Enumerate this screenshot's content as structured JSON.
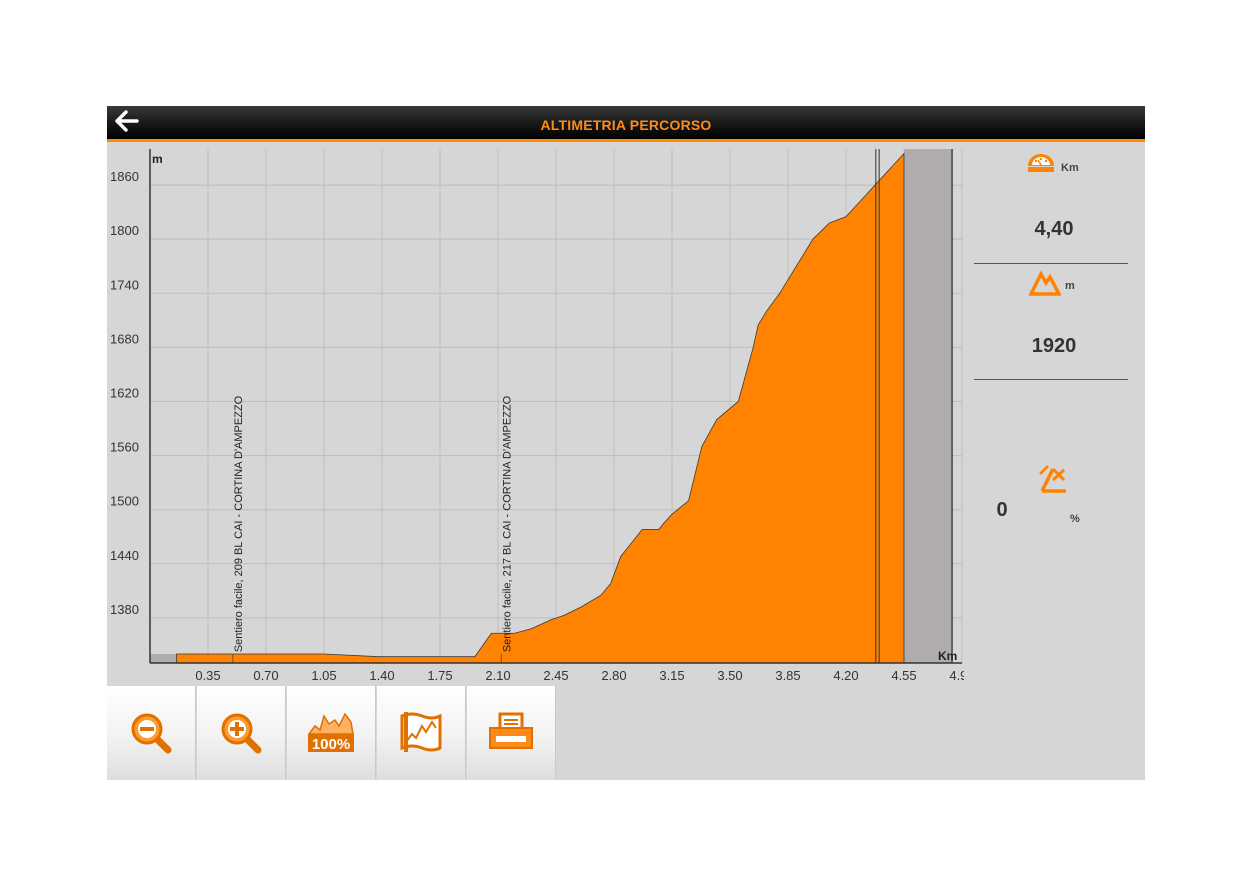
{
  "header": {
    "title": "ALTIMETRIA PERCORSO",
    "back_icon": "arrow-left-icon"
  },
  "side_panel": {
    "distance": {
      "icon": "odometer-icon",
      "unit": "Km",
      "value": "4,40"
    },
    "altitude": {
      "icon": "mountain-icon",
      "unit": "m",
      "value": "1920"
    },
    "slope": {
      "icon": "slope-icon",
      "unit": "%",
      "value": "0"
    }
  },
  "toolbar": {
    "buttons": [
      {
        "name": "zoom-out-button",
        "icon": "zoom-out-icon"
      },
      {
        "name": "zoom-in-button",
        "icon": "zoom-in-icon"
      },
      {
        "name": "zoom-100-button",
        "icon": "zoom-100-icon",
        "label": "100%"
      },
      {
        "name": "map-button",
        "icon": "map-icon"
      },
      {
        "name": "print-button",
        "icon": "printer-icon"
      }
    ]
  },
  "colors": {
    "accent": "#ff8200",
    "header_bg": "#000000",
    "panel_bg": "#d6d6d6",
    "gray_fill": "#b0acab"
  },
  "chart_data": {
    "type": "area",
    "ylabel": "m",
    "xlabel": "Km",
    "y_ticks": [
      "1860",
      "1800",
      "1740",
      "1680",
      "1620",
      "1560",
      "1500",
      "1440",
      "1380"
    ],
    "x_ticks": [
      "0.35",
      "0.70",
      "1.05",
      "1.40",
      "1.75",
      "2.10",
      "2.45",
      "2.80",
      "3.15",
      "3.50",
      "3.85",
      "4.20",
      "4.55",
      "4.90"
    ],
    "ylim": [
      1330,
      1900
    ],
    "xlim": [
      0,
      4.9
    ],
    "grid": true,
    "profile": {
      "x": [
        0.16,
        0.5,
        1.05,
        1.38,
        1.75,
        1.96,
        2.06,
        2.12,
        2.2,
        2.3,
        2.42,
        2.5,
        2.6,
        2.72,
        2.78,
        2.84,
        2.97,
        3.07,
        3.1,
        3.15,
        3.25,
        3.33,
        3.42,
        3.55,
        3.64,
        3.67,
        3.72,
        3.8,
        4.0,
        4.1,
        4.2,
        4.3,
        4.45,
        4.55,
        4.55
      ],
      "y": [
        1340,
        1340,
        1340,
        1337,
        1337,
        1337,
        1363,
        1363,
        1363,
        1368,
        1378,
        1383,
        1392,
        1405,
        1418,
        1448,
        1478,
        1478,
        1485,
        1495,
        1510,
        1570,
        1600,
        1620,
        1680,
        1705,
        1720,
        1740,
        1800,
        1818,
        1825,
        1845,
        1875,
        1895,
        1895
      ]
    },
    "gray_left": [
      0,
      0.16
    ],
    "gray_right": [
      4.55,
      4.84
    ],
    "markers": [
      {
        "x": 0.5,
        "label": "Sentiero facile, 209 BL CAI - CORTINA D'AMPEZZO"
      },
      {
        "x": 2.12,
        "label": "Sentiero facile, 217 BL CAI - CORTINA D'AMPEZZO"
      }
    ],
    "position_lines": [
      4.38,
      4.4
    ]
  }
}
